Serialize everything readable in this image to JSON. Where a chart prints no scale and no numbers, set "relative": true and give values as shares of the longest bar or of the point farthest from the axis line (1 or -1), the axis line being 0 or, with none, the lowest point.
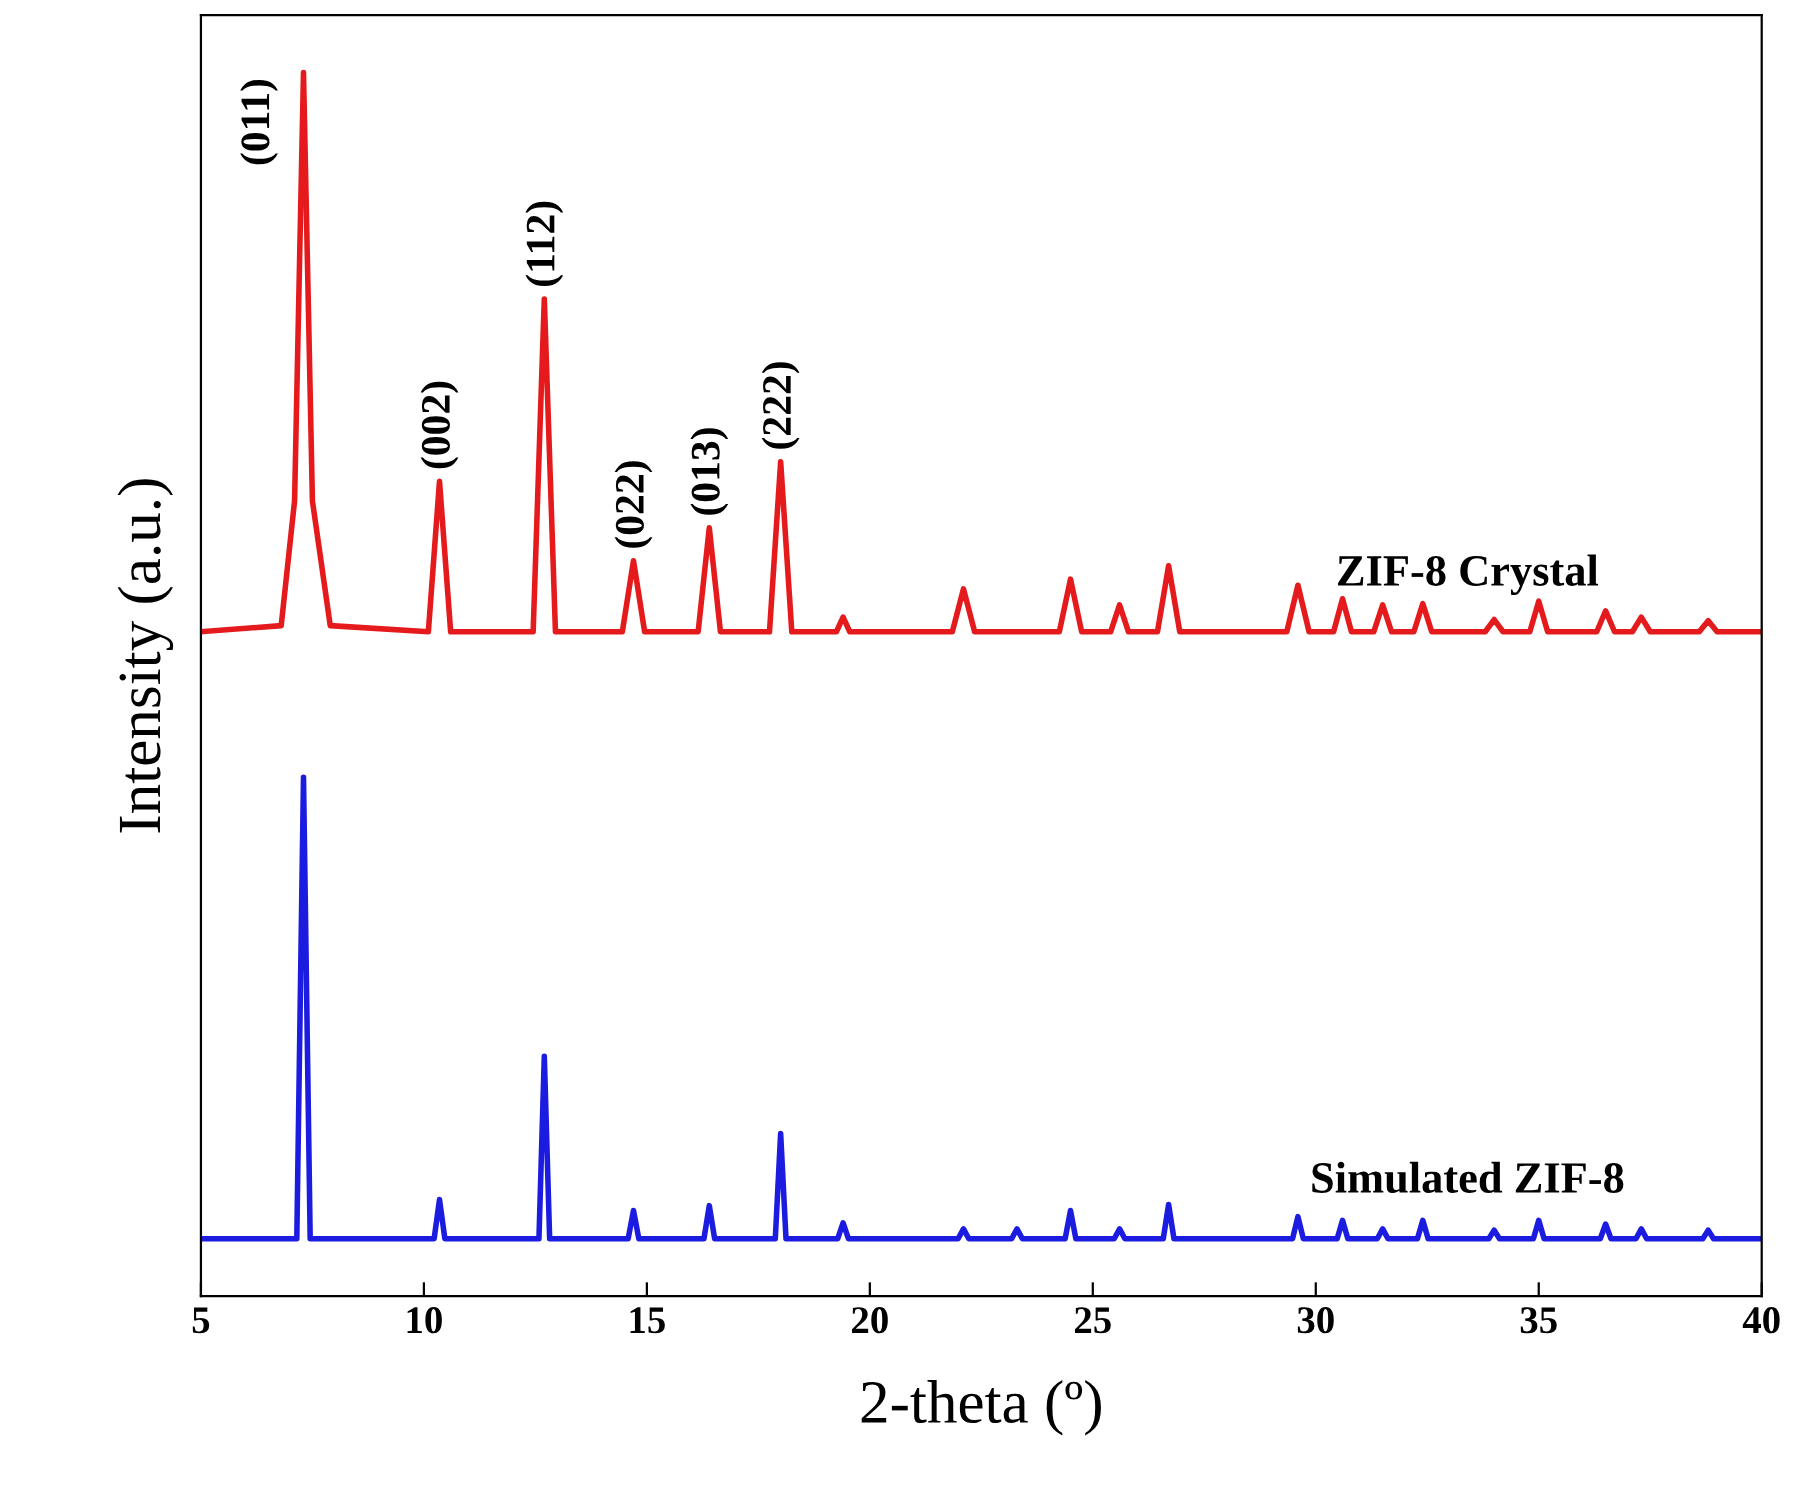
{
  "chart_data": {
    "type": "line",
    "xlabel": "2-theta (º)",
    "ylabel": "Intensity (a.u.)",
    "relative": true,
    "xlim": [
      5,
      40
    ],
    "xticks": [
      5,
      10,
      15,
      20,
      25,
      30,
      35,
      40
    ],
    "tick_labels": "x",
    "grid": false,
    "legend": false,
    "marker": "none",
    "line_style": "solid",
    "annotations": [
      {
        "text": "(011)",
        "x": 7.3,
        "y": 1.0
      },
      {
        "text": "(002)",
        "x": 10.35,
        "y": 0.666
      },
      {
        "text": "(112)",
        "x": 12.7,
        "y": 0.815
      },
      {
        "text": "(022)",
        "x": 14.7,
        "y": 0.601
      },
      {
        "text": "(013)",
        "x": 16.4,
        "y": 0.628
      },
      {
        "text": "(222)",
        "x": 18.0,
        "y": 0.682
      }
    ],
    "series": [
      {
        "name": "ZIF-8 Crystal",
        "color": "#e41a1c",
        "x": [
          5.0,
          6.8,
          7.1,
          7.3,
          7.5,
          7.9,
          10.1,
          10.35,
          10.6,
          12.45,
          12.7,
          12.95,
          14.45,
          14.7,
          14.95,
          16.15,
          16.4,
          16.65,
          17.75,
          18.0,
          18.25,
          19.25,
          19.4,
          19.55,
          21.85,
          22.1,
          22.35,
          24.25,
          24.5,
          24.75,
          25.4,
          25.6,
          25.8,
          26.45,
          26.7,
          26.95,
          29.35,
          29.6,
          29.85,
          30.4,
          30.6,
          30.8,
          31.3,
          31.5,
          31.7,
          32.2,
          32.4,
          32.6,
          33.8,
          34.0,
          34.2,
          34.8,
          35.0,
          35.2,
          36.3,
          36.5,
          36.7,
          37.1,
          37.3,
          37.5,
          38.6,
          38.8,
          39.0,
          40.0
        ],
        "values": [
          0.543,
          0.548,
          0.65,
          1.0,
          0.65,
          0.548,
          0.543,
          0.666,
          0.543,
          0.543,
          0.815,
          0.543,
          0.543,
          0.601,
          0.543,
          0.543,
          0.628,
          0.543,
          0.543,
          0.682,
          0.543,
          0.543,
          0.555,
          0.543,
          0.543,
          0.578,
          0.543,
          0.543,
          0.586,
          0.543,
          0.543,
          0.565,
          0.543,
          0.543,
          0.597,
          0.543,
          0.543,
          0.581,
          0.543,
          0.543,
          0.57,
          0.543,
          0.543,
          0.565,
          0.543,
          0.543,
          0.566,
          0.543,
          0.543,
          0.553,
          0.543,
          0.543,
          0.568,
          0.543,
          0.543,
          0.56,
          0.543,
          0.543,
          0.555,
          0.543,
          0.543,
          0.552,
          0.543,
          0.543
        ]
      },
      {
        "name": "Simulated ZIF-8",
        "color": "#1c1ce0",
        "x": [
          5.0,
          7.15,
          7.3,
          7.45,
          10.23,
          10.35,
          10.47,
          12.58,
          12.7,
          12.82,
          14.58,
          14.7,
          14.82,
          16.28,
          16.4,
          16.52,
          17.88,
          18.0,
          18.12,
          19.28,
          19.4,
          19.52,
          21.98,
          22.1,
          22.22,
          23.18,
          23.3,
          23.42,
          24.38,
          24.5,
          24.62,
          25.48,
          25.6,
          25.72,
          26.58,
          26.7,
          26.82,
          29.48,
          29.6,
          29.72,
          30.48,
          30.6,
          30.72,
          31.38,
          31.5,
          31.62,
          32.28,
          32.4,
          32.52,
          33.88,
          34.0,
          34.12,
          34.88,
          35.0,
          35.12,
          36.38,
          36.5,
          36.62,
          37.18,
          37.3,
          37.42,
          38.68,
          38.8,
          38.92,
          40.0
        ],
        "values": [
          0.047,
          0.047,
          0.424,
          0.047,
          0.047,
          0.079,
          0.047,
          0.047,
          0.196,
          0.047,
          0.047,
          0.07,
          0.047,
          0.047,
          0.074,
          0.047,
          0.047,
          0.133,
          0.047,
          0.047,
          0.06,
          0.047,
          0.047,
          0.055,
          0.047,
          0.047,
          0.055,
          0.047,
          0.047,
          0.07,
          0.047,
          0.047,
          0.055,
          0.047,
          0.047,
          0.075,
          0.047,
          0.047,
          0.065,
          0.047,
          0.047,
          0.062,
          0.047,
          0.047,
          0.055,
          0.047,
          0.047,
          0.062,
          0.047,
          0.047,
          0.054,
          0.047,
          0.047,
          0.062,
          0.047,
          0.047,
          0.059,
          0.047,
          0.047,
          0.055,
          0.047,
          0.047,
          0.054,
          0.047,
          0.047
        ]
      }
    ]
  }
}
